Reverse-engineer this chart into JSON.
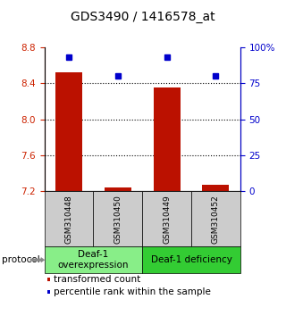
{
  "title": "GDS3490 / 1416578_at",
  "samples": [
    "GSM310448",
    "GSM310450",
    "GSM310449",
    "GSM310452"
  ],
  "transformed_counts": [
    8.52,
    7.24,
    8.35,
    7.27
  ],
  "percentile_ranks": [
    93,
    80,
    93,
    80
  ],
  "ylim_left": [
    7.2,
    8.8
  ],
  "ylim_right": [
    0,
    100
  ],
  "yticks_left": [
    7.2,
    7.6,
    8.0,
    8.4,
    8.8
  ],
  "yticks_right": [
    0,
    25,
    50,
    75,
    100
  ],
  "ytick_labels_right": [
    "0",
    "25",
    "50",
    "75",
    "100%"
  ],
  "bar_color": "#bb1100",
  "marker_color": "#0000cc",
  "bar_width": 0.55,
  "groups": [
    {
      "label": "Deaf-1\noverexpression",
      "samples": [
        0,
        1
      ],
      "color": "#88ee88"
    },
    {
      "label": "Deaf-1 deficiency",
      "samples": [
        2,
        3
      ],
      "color": "#33cc33"
    }
  ],
  "protocol_label": "protocol",
  "legend_bar_label": "transformed count",
  "legend_marker_label": "percentile rank within the sample",
  "title_fontsize": 10,
  "tick_fontsize": 7.5,
  "label_fontsize": 7.5,
  "sample_label_fontsize": 6.5,
  "group_label_fontsize": 7.5,
  "background_color": "#ffffff",
  "plot_bg_color": "#ffffff",
  "gridline_color": "#000000",
  "left_tick_color": "#cc2200",
  "right_tick_color": "#0000cc"
}
